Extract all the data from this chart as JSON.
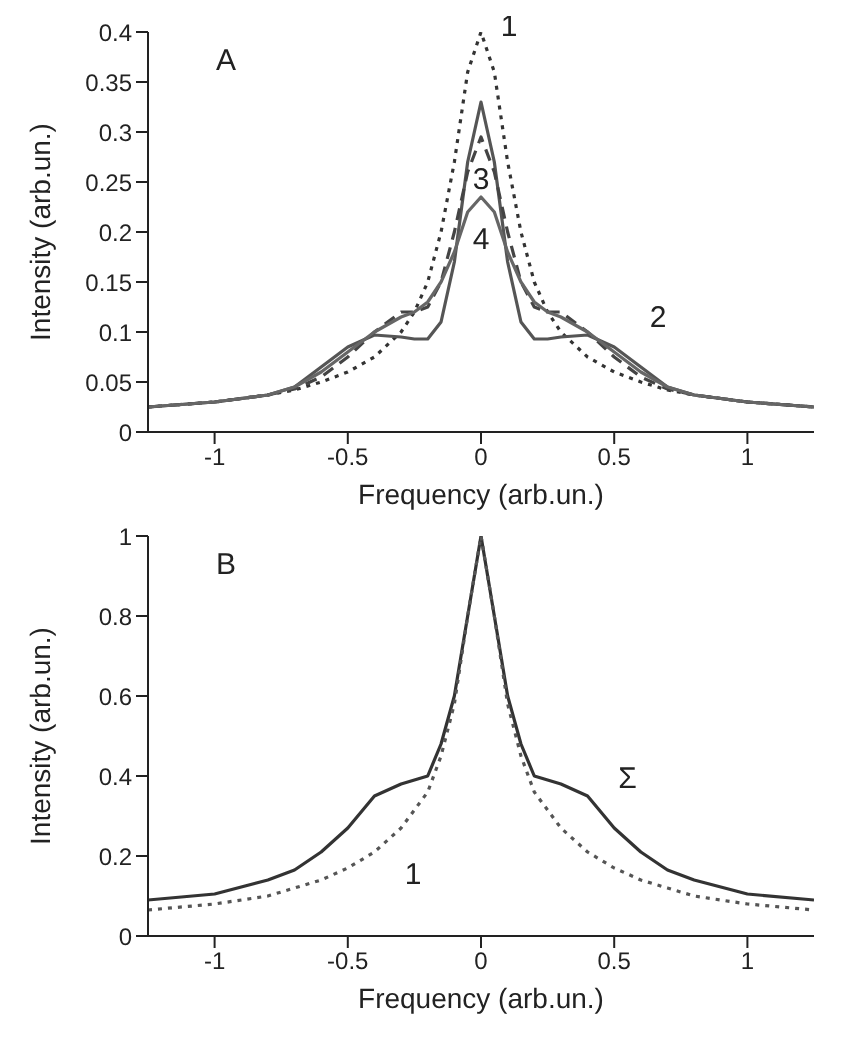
{
  "chart_data": [
    {
      "type": "line",
      "title": "A",
      "xlabel": "Frequency (arb.un.)",
      "ylabel": "Intensity (arb.un.)",
      "x": [
        -1.25,
        -1,
        -0.8,
        -0.7,
        -0.6,
        -0.5,
        -0.4,
        -0.3,
        -0.25,
        -0.2,
        -0.15,
        -0.1,
        -0.05,
        0,
        0.05,
        0.1,
        0.15,
        0.2,
        0.25,
        0.3,
        0.4,
        0.5,
        0.6,
        0.7,
        0.8,
        1,
        1.25
      ],
      "series": [
        {
          "name": "1",
          "color": "#333333",
          "line_style": "dotted",
          "values": [
            0.025,
            0.03,
            0.037,
            0.042,
            0.05,
            0.06,
            0.075,
            0.1,
            0.12,
            0.15,
            0.2,
            0.27,
            0.36,
            0.4,
            0.36,
            0.27,
            0.2,
            0.15,
            0.12,
            0.1,
            0.075,
            0.06,
            0.05,
            0.042,
            0.037,
            0.03,
            0.025
          ]
        },
        {
          "name": "2",
          "color": "#555555",
          "line_style": "solid",
          "values": [
            0.025,
            0.03,
            0.037,
            0.045,
            0.065,
            0.085,
            0.097,
            0.095,
            0.093,
            0.093,
            0.11,
            0.17,
            0.27,
            0.33,
            0.27,
            0.17,
            0.11,
            0.093,
            0.093,
            0.095,
            0.097,
            0.085,
            0.065,
            0.045,
            0.037,
            0.03,
            0.025
          ]
        },
        {
          "name": "3",
          "color": "#444444",
          "line_style": "dashed",
          "values": [
            0.025,
            0.03,
            0.037,
            0.043,
            0.055,
            0.075,
            0.1,
            0.12,
            0.12,
            0.125,
            0.15,
            0.2,
            0.26,
            0.295,
            0.26,
            0.2,
            0.15,
            0.125,
            0.12,
            0.12,
            0.1,
            0.075,
            0.055,
            0.043,
            0.037,
            0.03,
            0.025
          ]
        },
        {
          "name": "4",
          "color": "#666666",
          "line_style": "solid",
          "values": [
            0.025,
            0.03,
            0.037,
            0.045,
            0.06,
            0.08,
            0.1,
            0.115,
            0.12,
            0.13,
            0.15,
            0.18,
            0.22,
            0.235,
            0.22,
            0.18,
            0.15,
            0.13,
            0.12,
            0.115,
            0.1,
            0.08,
            0.06,
            0.045,
            0.037,
            0.03,
            0.025
          ]
        }
      ],
      "xlim": [
        -1.25,
        1.25
      ],
      "xticks": [
        -1,
        -0.5,
        0,
        0.5,
        1
      ],
      "ylim": [
        0,
        0.4
      ],
      "yticks": [
        0,
        0.05,
        0.1,
        0.15,
        0.2,
        0.25,
        0.3,
        0.35,
        0.4
      ],
      "grid": false,
      "legend": false
    },
    {
      "type": "line",
      "title": "B",
      "xlabel": "Frequency (arb.un.)",
      "ylabel": "Intensity (arb.un.)",
      "x": [
        -1.25,
        -1,
        -0.8,
        -0.7,
        -0.6,
        -0.5,
        -0.4,
        -0.3,
        -0.2,
        -0.15,
        -0.1,
        -0.05,
        0,
        0.05,
        0.1,
        0.15,
        0.2,
        0.3,
        0.4,
        0.5,
        0.6,
        0.7,
        0.8,
        1,
        1.25
      ],
      "series": [
        {
          "name": "Σ",
          "color": "#333333",
          "line_style": "solid",
          "values": [
            0.09,
            0.105,
            0.14,
            0.165,
            0.21,
            0.27,
            0.35,
            0.38,
            0.4,
            0.48,
            0.6,
            0.8,
            1,
            0.8,
            0.6,
            0.48,
            0.4,
            0.38,
            0.35,
            0.27,
            0.21,
            0.165,
            0.14,
            0.105,
            0.09
          ]
        },
        {
          "name": "1",
          "color": "#555555",
          "line_style": "dotted",
          "values": [
            0.065,
            0.08,
            0.1,
            0.12,
            0.14,
            0.17,
            0.21,
            0.27,
            0.36,
            0.45,
            0.58,
            0.8,
            1,
            0.8,
            0.58,
            0.45,
            0.36,
            0.27,
            0.21,
            0.17,
            0.14,
            0.12,
            0.1,
            0.08,
            0.065
          ]
        }
      ],
      "xlim": [
        -1.25,
        1.25
      ],
      "xticks": [
        -1,
        -0.5,
        0,
        0.5,
        1
      ],
      "ylim": [
        0,
        1
      ],
      "yticks": [
        0,
        0.2,
        0.4,
        0.6,
        0.8,
        1
      ],
      "grid": false,
      "legend": false
    }
  ]
}
